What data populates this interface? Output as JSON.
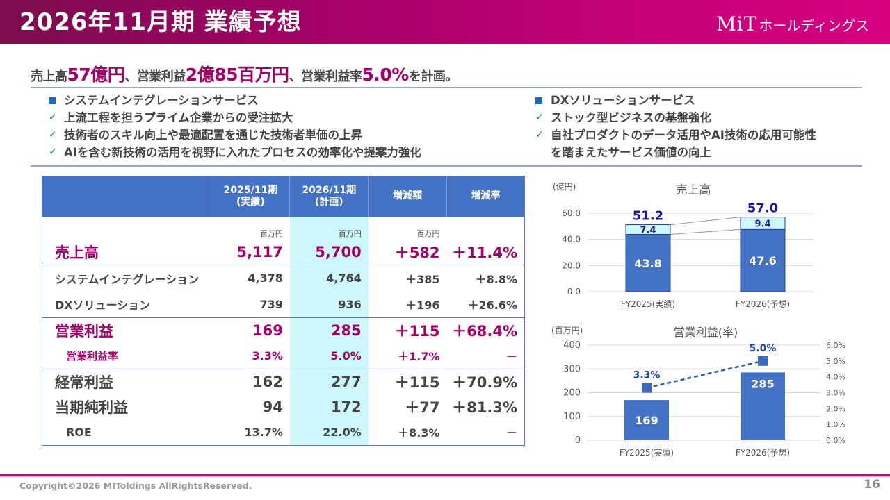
{
  "header": {
    "title": "2026年11月期 業績予想",
    "logo_mark": "MiT",
    "logo_text": "ホールディングス"
  },
  "headline": {
    "p1": "売上高",
    "v1": "57億円",
    "p2": "、営業利益",
    "v2": "2億85百万円",
    "p3": "、営業利益率",
    "v3": "5.0%",
    "p4": "を計画。"
  },
  "left_bullets": {
    "heading": "システムインテグレーションサービス",
    "items": [
      "上流工程を担うプライム企業からの受注拡大",
      "技術者のスキル向上や最適配置を通じた技術者単価の上昇",
      "AIを含む新技術の活用を視野に入れたプロセスの効率化や提案力強化"
    ]
  },
  "right_bullets": {
    "heading": "DXソリューションサービス",
    "items": [
      "ストック型ビジネスの基盤強化",
      "自社プロダクトのデータ活用やAI技術の応用可能性",
      "を踏まえたサービス価値の向上"
    ]
  },
  "table": {
    "headers": [
      "",
      "2025/11期",
      "(実績)",
      "2026/11期",
      "(計画)",
      "増減額",
      "増減率"
    ],
    "unit_row": [
      "",
      "百万円",
      "百万円",
      "百万円",
      ""
    ],
    "rows": [
      {
        "label": "売上高",
        "fy2025": "5,117",
        "fy2026": "5,700",
        "diff": "＋582",
        "rate": "＋11.4%"
      },
      {
        "label": "システムインテグレーション",
        "fy2025": "4,378",
        "fy2026": "4,764",
        "diff": "＋385",
        "rate": "＋8.8%"
      },
      {
        "label": "DXソリューション",
        "fy2025": "739",
        "fy2026": "936",
        "diff": "＋196",
        "rate": "＋26.6%"
      },
      {
        "label": "営業利益",
        "fy2025": "169",
        "fy2026": "285",
        "diff": "＋115",
        "rate": "＋68.4%"
      },
      {
        "label": "営業利益率",
        "fy2025": "3.3%",
        "fy2026": "5.0%",
        "diff": "＋1.7%",
        "rate": "－"
      },
      {
        "label": "経常利益",
        "fy2025": "162",
        "fy2026": "277",
        "diff": "＋115",
        "rate": "＋70.9%"
      },
      {
        "label": "当期純利益",
        "fy2025": "94",
        "fy2026": "172",
        "diff": "＋77",
        "rate": "＋81.3%"
      },
      {
        "label": "ROE",
        "fy2025": "13.7%",
        "fy2026": "22.0%",
        "diff": "＋8.3%",
        "rate": "－"
      }
    ]
  },
  "chart_data": [
    {
      "type": "bar",
      "stacked": true,
      "title": "売上高",
      "unit_label": "(億円)",
      "categories": [
        "FY2025(実績)",
        "FY2026(予想)"
      ],
      "series": [
        {
          "name": "システムインテグレーション",
          "values": [
            43.8,
            47.6
          ],
          "color": "#4472c4"
        },
        {
          "name": "DXソリューション",
          "values": [
            7.4,
            9.4
          ],
          "color": "#ccf8fb"
        }
      ],
      "totals": [
        51.2,
        57.0
      ],
      "ylim": [
        0,
        60
      ],
      "yticks": [
        "0.0",
        "20.0",
        "40.0",
        "60.0"
      ],
      "grid": true
    },
    {
      "type": "bar",
      "title": "営業利益(率)",
      "unit_label": "(百万円)",
      "categories": [
        "FY2025(実績)",
        "FY2026(予想)"
      ],
      "series": [
        {
          "name": "営業利益",
          "values": [
            169,
            285
          ],
          "color": "#4472c4",
          "axis": "left"
        },
        {
          "name": "営業利益率",
          "type": "line",
          "values": [
            3.3,
            5.0
          ],
          "labels": [
            "3.3%",
            "5.0%"
          ],
          "color": "#2a5db0",
          "axis": "right"
        }
      ],
      "ylim": [
        0,
        400
      ],
      "yticks": [
        "0",
        "100",
        "200",
        "300",
        "400"
      ],
      "y2lim": [
        0,
        6
      ],
      "y2ticks": [
        "0.0%",
        "1.0%",
        "2.0%",
        "3.0%",
        "4.0%",
        "5.0%",
        "6.0%"
      ],
      "grid": true
    }
  ],
  "footer": {
    "copyright": "Copyright©2026 MIToldings AllRightsReserved.",
    "page": "16"
  }
}
